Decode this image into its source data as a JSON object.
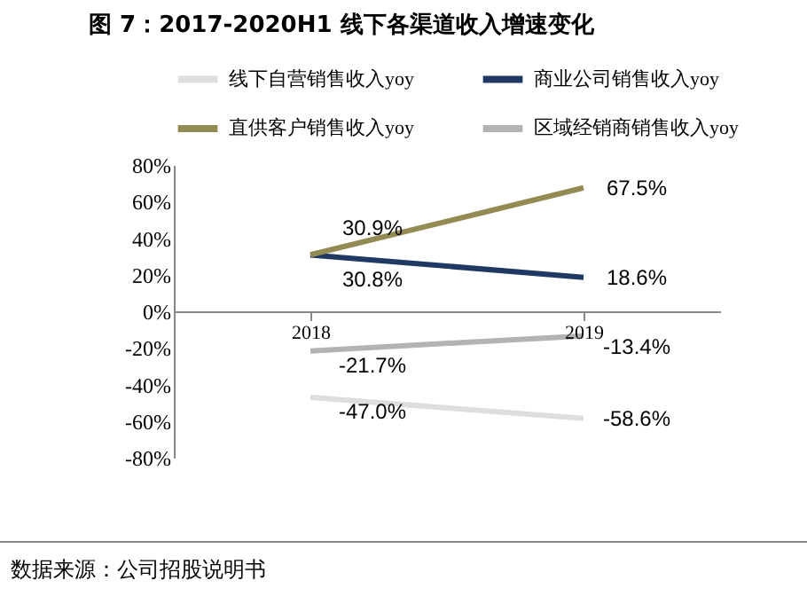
{
  "chart_data": {
    "type": "line",
    "title": "图 7：2017-2020H1 线下各渠道收入增速变化",
    "categories": [
      "2018",
      "2019"
    ],
    "series": [
      {
        "name": "线下自营销售收入yoy",
        "color": "#dedede",
        "values": [
          -47.0,
          -58.6
        ],
        "value_labels": [
          "-47.0%",
          "-58.6%"
        ]
      },
      {
        "name": "商业公司销售收入yoy",
        "color": "#1f3864",
        "values": [
          30.8,
          18.6
        ],
        "value_labels": [
          "30.8%",
          "18.6%"
        ]
      },
      {
        "name": "直供客户销售收入yoy",
        "color": "#948a54",
        "values": [
          30.9,
          67.5
        ],
        "value_labels": [
          "30.9%",
          "67.5%"
        ]
      },
      {
        "name": "区域经销商销售收入yoy",
        "color": "#b3b3b3",
        "values": [
          -21.7,
          -13.4
        ],
        "value_labels": [
          "-21.7%",
          "-13.4%"
        ]
      }
    ],
    "ylim": [
      -80,
      80
    ],
    "yticks": [
      {
        "value": -80,
        "label": "-80%"
      },
      {
        "value": -60,
        "label": "-60%"
      },
      {
        "value": -40,
        "label": "-40%"
      },
      {
        "value": -20,
        "label": "-20%"
      },
      {
        "value": 0,
        "label": "0%"
      },
      {
        "value": 20,
        "label": "20%"
      },
      {
        "value": 40,
        "label": "40%"
      },
      {
        "value": 60,
        "label": "60%"
      },
      {
        "value": 80,
        "label": "80%"
      }
    ],
    "grid": false,
    "legend": "top",
    "marker": "none",
    "line_style": "solid",
    "annotations": [
      "数据来源：公司招股说明书"
    ]
  }
}
